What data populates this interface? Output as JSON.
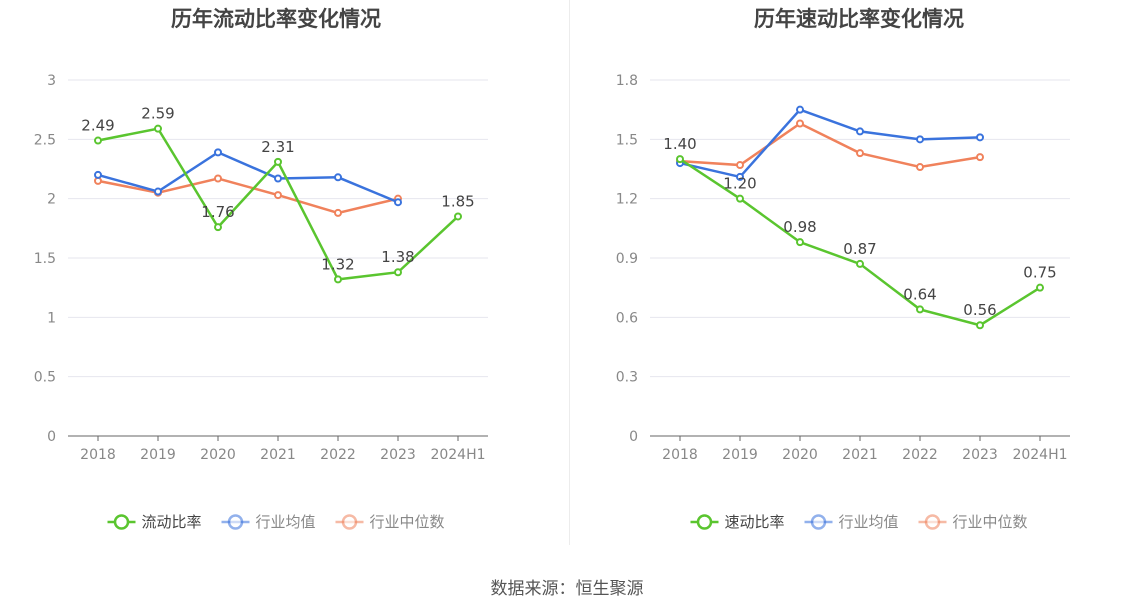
{
  "source_label": "数据来源：恒生聚源",
  "chart_data": [
    {
      "type": "line",
      "title": "历年流动比率变化情况",
      "categories": [
        "2018",
        "2019",
        "2020",
        "2021",
        "2022",
        "2023",
        "2024H1"
      ],
      "ylim": [
        0,
        3
      ],
      "yticks": [
        "0",
        "0.5",
        "1",
        "1.5",
        "2",
        "2.5",
        "3"
      ],
      "grid": true,
      "legend_position": "bottom",
      "series": [
        {
          "name": "流动比率",
          "color": "#5ac52f",
          "values": [
            2.49,
            2.59,
            1.76,
            2.31,
            1.32,
            1.38,
            1.85
          ],
          "labels": [
            "2.49",
            "2.59",
            "1.76",
            "2.31",
            "1.32",
            "1.38",
            "1.85"
          ]
        },
        {
          "name": "行业均值",
          "color": "#3a73dd",
          "values": [
            2.2,
            2.06,
            2.39,
            2.17,
            2.18,
            1.97,
            null
          ]
        },
        {
          "name": "行业中位数",
          "color": "#f0825c",
          "values": [
            2.15,
            2.05,
            2.17,
            2.03,
            1.88,
            2.0,
            null
          ]
        }
      ]
    },
    {
      "type": "line",
      "title": "历年速动比率变化情况",
      "categories": [
        "2018",
        "2019",
        "2020",
        "2021",
        "2022",
        "2023",
        "2024H1"
      ],
      "ylim": [
        0,
        1.8
      ],
      "yticks": [
        "0",
        "0.3",
        "0.6",
        "0.9",
        "1.2",
        "1.5",
        "1.8"
      ],
      "grid": true,
      "legend_position": "bottom",
      "series": [
        {
          "name": "速动比率",
          "color": "#5ac52f",
          "values": [
            1.4,
            1.2,
            0.98,
            0.87,
            0.64,
            0.56,
            0.75
          ],
          "labels": [
            "1.40",
            "1.20",
            "0.98",
            "0.87",
            "0.64",
            "0.56",
            "0.75"
          ]
        },
        {
          "name": "行业均值",
          "color": "#3a73dd",
          "values": [
            1.38,
            1.31,
            1.65,
            1.54,
            1.5,
            1.51,
            null
          ]
        },
        {
          "name": "行业中位数",
          "color": "#f0825c",
          "values": [
            1.39,
            1.37,
            1.58,
            1.43,
            1.36,
            1.41,
            null
          ]
        }
      ]
    }
  ]
}
